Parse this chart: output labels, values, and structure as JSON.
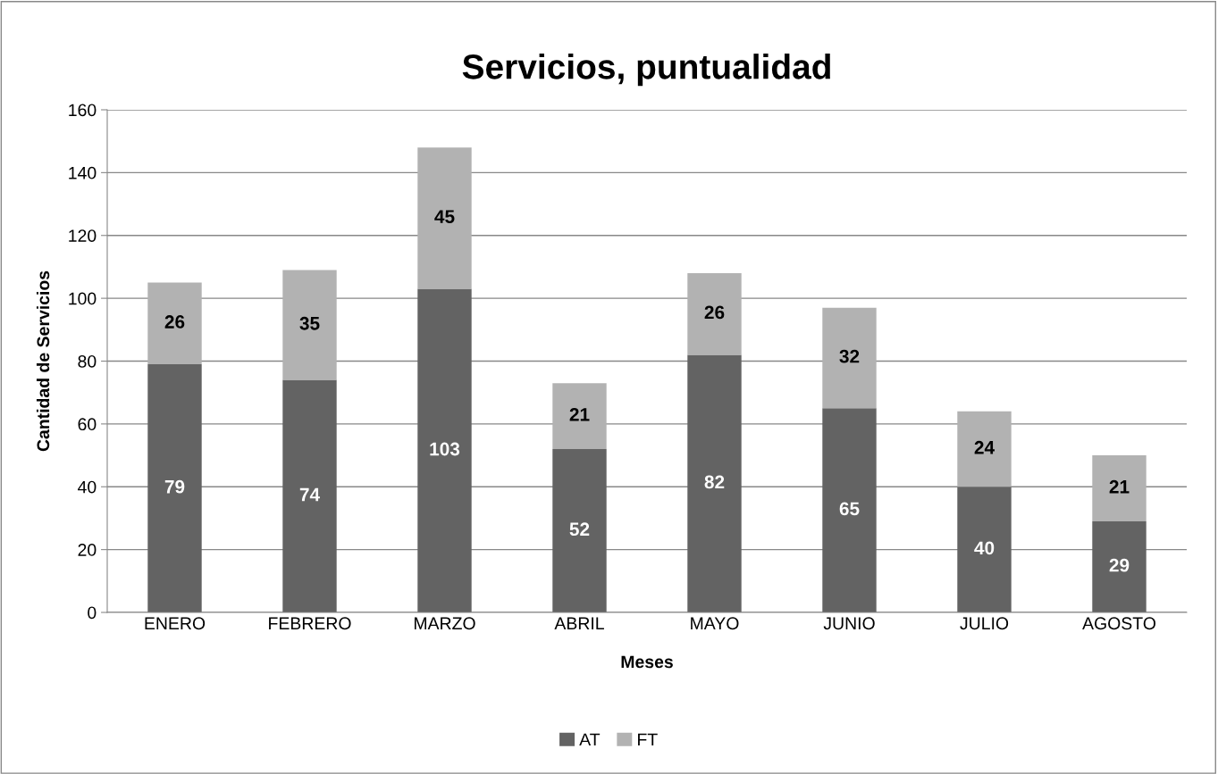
{
  "chart_data": {
    "type": "bar",
    "title": "Servicios, puntualidad",
    "xlabel": "Meses",
    "ylabel": "Cantidad de Servicios",
    "categories": [
      "ENERO",
      "FEBRERO",
      "MARZO",
      "ABRIL",
      "MAYO",
      "JUNIO",
      "JULIO",
      "AGOSTO"
    ],
    "series": [
      {
        "name": "AT",
        "color": "#636363",
        "values": [
          79,
          74,
          103,
          52,
          82,
          65,
          40,
          29
        ]
      },
      {
        "name": "FT",
        "color": "#b2b2b2",
        "values": [
          26,
          35,
          45,
          21,
          26,
          32,
          24,
          21
        ]
      }
    ],
    "stacked": true,
    "data_labels": true,
    "ylim": [
      0,
      160
    ],
    "yticks": [
      0,
      20,
      40,
      60,
      80,
      100,
      120,
      140,
      160
    ],
    "grid": "y",
    "legend": "bottom"
  }
}
